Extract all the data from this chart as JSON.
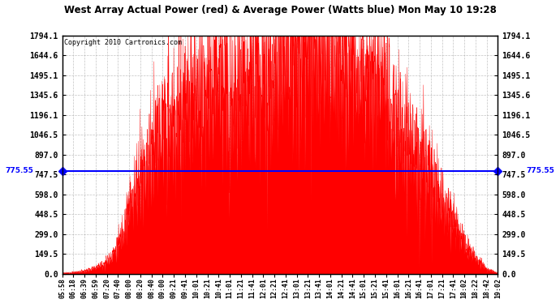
{
  "title": "West Array Actual Power (red) & Average Power (Watts blue) Mon May 10 19:28",
  "copyright": "Copyright 2010 Cartronics.com",
  "avg_power": 775.55,
  "ymax": 1794.1,
  "ymin": 0.0,
  "yticks": [
    0.0,
    149.5,
    299.0,
    448.5,
    598.0,
    747.5,
    897.0,
    1046.5,
    1196.1,
    1345.6,
    1495.1,
    1644.6,
    1794.1
  ],
  "fill_color": "#FF0000",
  "line_color": "#0000FF",
  "background_color": "#FFFFFF",
  "grid_color": "#AAAAAA",
  "x_times": [
    "05:58",
    "06:18",
    "06:39",
    "06:59",
    "07:20",
    "07:40",
    "08:00",
    "08:20",
    "08:40",
    "09:00",
    "09:21",
    "09:41",
    "10:01",
    "10:21",
    "10:41",
    "11:01",
    "11:21",
    "11:41",
    "12:01",
    "12:21",
    "12:41",
    "13:01",
    "13:21",
    "13:41",
    "14:01",
    "14:21",
    "14:41",
    "15:01",
    "15:21",
    "15:41",
    "16:01",
    "16:21",
    "16:41",
    "17:01",
    "17:21",
    "17:41",
    "18:02",
    "18:22",
    "18:42",
    "19:02"
  ],
  "power_envelope": [
    5,
    10,
    20,
    45,
    90,
    200,
    480,
    750,
    900,
    1050,
    1150,
    1200,
    1300,
    1380,
    1450,
    1380,
    1420,
    1500,
    1550,
    1600,
    1650,
    1780,
    1750,
    1794,
    1680,
    1600,
    1550,
    1480,
    1380,
    1280,
    1100,
    980,
    870,
    750,
    580,
    400,
    220,
    110,
    35,
    5
  ],
  "spike_seed": 123
}
